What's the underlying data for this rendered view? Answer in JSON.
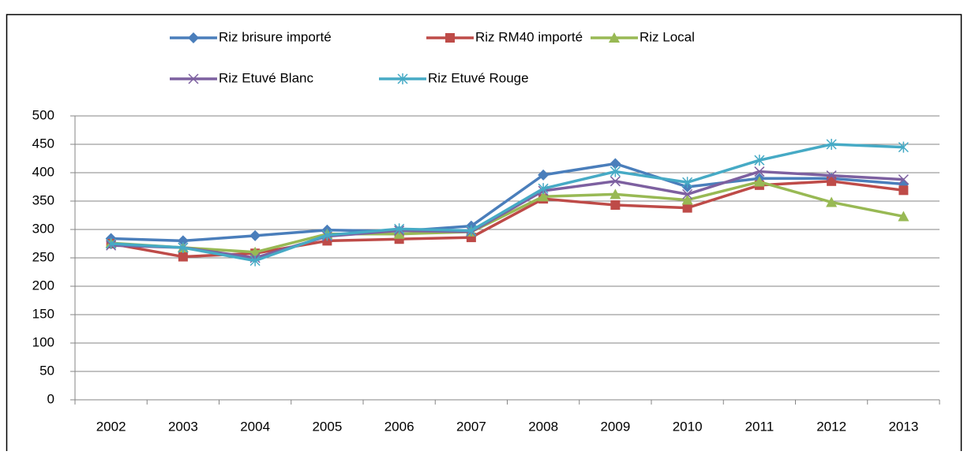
{
  "chart_data": {
    "type": "line",
    "categories": [
      "2002",
      "2003",
      "2004",
      "2005",
      "2006",
      "2007",
      "2008",
      "2009",
      "2010",
      "2011",
      "2012",
      "2013"
    ],
    "series": [
      {
        "name": "Riz brisure importé",
        "color": "#4a7ebb",
        "marker": "diamond",
        "values": [
          284,
          280,
          289,
          299,
          297,
          306,
          396,
          416,
          375,
          390,
          390,
          380
        ]
      },
      {
        "name": "Riz RM40 importé",
        "color": "#be4b48",
        "marker": "square",
        "values": [
          275,
          252,
          258,
          280,
          283,
          286,
          354,
          343,
          338,
          378,
          385,
          369
        ]
      },
      {
        "name": "Riz Local",
        "color": "#98b954",
        "marker": "triangle",
        "values": [
          276,
          268,
          260,
          292,
          292,
          296,
          358,
          362,
          352,
          384,
          348,
          323
        ]
      },
      {
        "name": "Riz Etuvé Blanc",
        "color": "#7d60a0",
        "marker": "x",
        "values": [
          272,
          268,
          250,
          288,
          298,
          296,
          368,
          385,
          362,
          402,
          395,
          388
        ]
      },
      {
        "name": "Riz Etuvé Rouge",
        "color": "#46aac5",
        "marker": "star",
        "values": [
          275,
          268,
          245,
          290,
          301,
          298,
          372,
          402,
          383,
          422,
          450,
          445
        ]
      }
    ],
    "ylim": [
      0,
      500
    ],
    "yticks": [
      0,
      50,
      100,
      150,
      200,
      250,
      300,
      350,
      400,
      450,
      500
    ],
    "grid": true,
    "legend": "top"
  }
}
